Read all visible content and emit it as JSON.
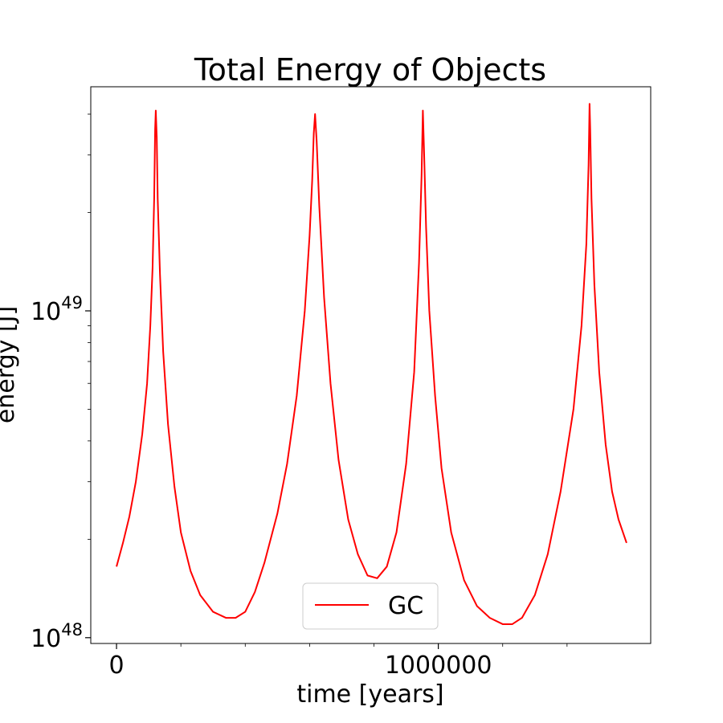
{
  "chart_data": {
    "type": "line",
    "title": "Total Energy of Objects",
    "xlabel": "time [years]",
    "ylabel": "energy [J]",
    "xlim": [
      -80000,
      1660000
    ],
    "ylim": [
      9.6e+47,
      4.85e+49
    ],
    "yscale": "log",
    "grid": false,
    "legend": {
      "placement": "lower-center"
    },
    "x_major_ticks": [
      {
        "value": 0,
        "label": "0"
      },
      {
        "value": 1000000,
        "label": "1000000"
      }
    ],
    "x_minor_ticks": [
      200000,
      400000,
      600000,
      800000,
      1200000,
      1400000
    ],
    "y_major_ticks": [
      {
        "value": 1e+48,
        "base": "10",
        "exp": "48"
      },
      {
        "value": 1e+49,
        "base": "10",
        "exp": "49"
      }
    ],
    "y_minor_ticks": [
      2e+48,
      3e+48,
      4e+48,
      5e+48,
      6e+48,
      7e+48,
      8e+48,
      9e+48,
      2e+49,
      3e+49,
      4e+49
    ],
    "series": [
      {
        "name": "GC",
        "color": "#ff0000",
        "x": [
          0,
          20000,
          40000,
          60000,
          80000,
          95000,
          105000,
          112000,
          117000,
          120000,
          122000,
          125000,
          128000,
          135000,
          145000,
          160000,
          180000,
          200000,
          230000,
          260000,
          300000,
          340000,
          370000,
          400000,
          430000,
          460000,
          500000,
          530000,
          560000,
          585000,
          600000,
          608000,
          613000,
          617000,
          622000,
          630000,
          645000,
          665000,
          690000,
          720000,
          750000,
          780000,
          810000,
          840000,
          870000,
          900000,
          925000,
          940000,
          948000,
          952000,
          956000,
          962000,
          972000,
          990000,
          1010000,
          1040000,
          1080000,
          1120000,
          1160000,
          1200000,
          1230000,
          1260000,
          1300000,
          1340000,
          1380000,
          1420000,
          1445000,
          1460000,
          1467000,
          1470000,
          1472000,
          1476000,
          1485000,
          1500000,
          1520000,
          1540000,
          1560000,
          1585000
        ],
        "y": [
          1.65e+48,
          1.95e+48,
          2.35e+48,
          3e+48,
          4.2e+48,
          6e+48,
          9e+48,
          1.35e+49,
          2.2e+49,
          3.6e+49,
          4.1e+49,
          3.4e+49,
          2.2e+49,
          1.3e+49,
          7.5e+48,
          4.5e+48,
          2.9e+48,
          2.1e+48,
          1.6e+48,
          1.35e+48,
          1.2e+48,
          1.15e+48,
          1.15e+48,
          1.2e+48,
          1.38e+48,
          1.7e+48,
          2.4e+48,
          3.4e+48,
          5.5e+48,
          1e+49,
          1.7e+49,
          2.5e+49,
          3.5e+49,
          4e+49,
          3.3e+49,
          2.1e+49,
          1.1e+49,
          6e+48,
          3.5e+48,
          2.3e+48,
          1.8e+48,
          1.55e+48,
          1.52e+48,
          1.65e+48,
          2.1e+48,
          3.4e+48,
          6.5e+48,
          1.4e+49,
          2.6e+49,
          4.1e+49,
          3e+49,
          1.8e+49,
          1e+49,
          5.5e+48,
          3.3e+48,
          2.1e+48,
          1.5e+48,
          1.25e+48,
          1.15e+48,
          1.1e+48,
          1.1e+48,
          1.15e+48,
          1.35e+48,
          1.8e+48,
          2.8e+48,
          5e+48,
          9e+48,
          1.6e+49,
          2.8e+49,
          4.3e+49,
          3.6e+49,
          2.2e+49,
          1.2e+49,
          6.5e+48,
          3.9e+48,
          2.8e+48,
          2.3e+48,
          1.95e+48
        ]
      }
    ]
  }
}
